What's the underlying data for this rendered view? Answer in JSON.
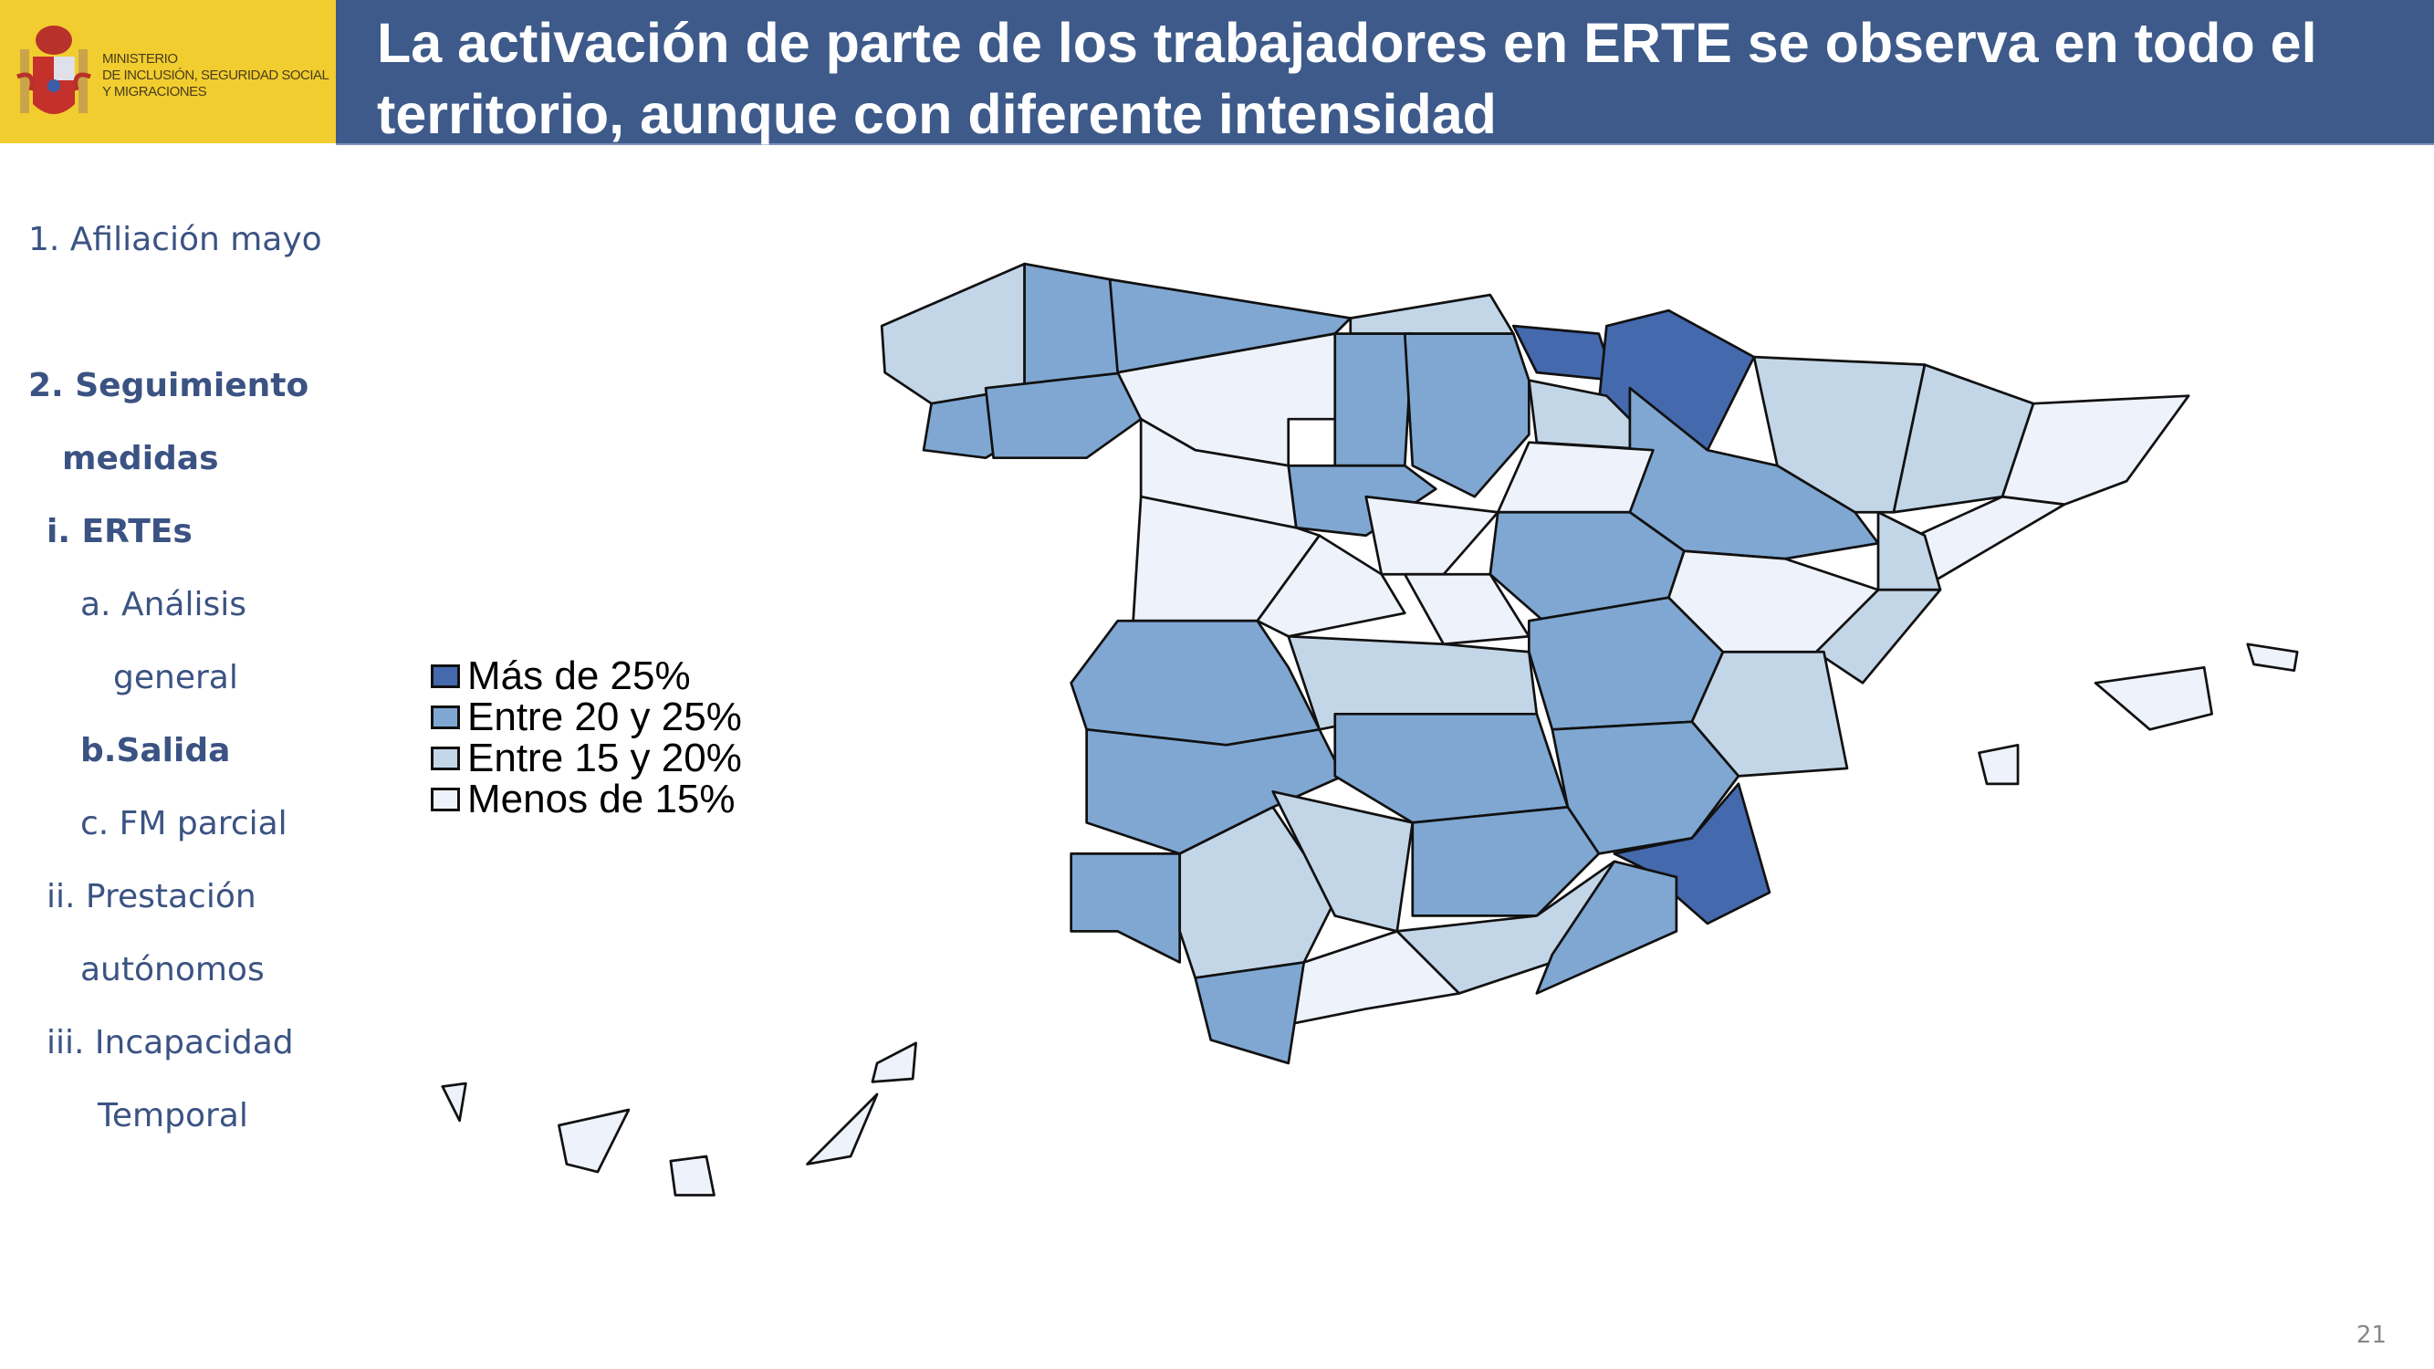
{
  "logo": {
    "lines": [
      "MINISTERIO",
      "DE INCLUSIÓN, SEGURIDAD SOCIAL",
      "Y MIGRACIONES"
    ]
  },
  "header": {
    "title": "La activación de parte de los trabajadores en ERTE se observa en todo el territorio, aunque con diferente intensidad"
  },
  "sidebar": {
    "items": [
      {
        "label": "1. Afiliación mayo",
        "bold": false
      },
      {
        "label": "2. Seguimiento",
        "bold": true
      },
      {
        "label": "medidas",
        "bold": true
      },
      {
        "label": "i.   ERTEs",
        "bold": true
      },
      {
        "label": "a. Análisis",
        "bold": false
      },
      {
        "label": "general",
        "bold": false
      },
      {
        "label": "b.Salida",
        "bold": true
      },
      {
        "label": "c. FM parcial",
        "bold": false
      },
      {
        "label": "ii.  Prestación",
        "bold": false
      },
      {
        "label": "autónomos",
        "bold": false
      },
      {
        "label": "iii.  Incapacidad",
        "bold": false
      },
      {
        "label": "Temporal",
        "bold": false
      }
    ]
  },
  "chart_data": {
    "type": "choropleth",
    "legend": [
      {
        "label": "Más de 25%",
        "color": "#4469ad"
      },
      {
        "label": "Entre 20 y 25%",
        "color": "#7fa7d2"
      },
      {
        "label": "Entre 15 y 20%",
        "color": "#c3d6e8"
      },
      {
        "label": "Menos de 15%",
        "color": "#eef2fb"
      }
    ],
    "region_classes": [
      2,
      1,
      1,
      1,
      1,
      2,
      0,
      0,
      3,
      1,
      1,
      2,
      2,
      2,
      3,
      3,
      1,
      3,
      1,
      2,
      3,
      3,
      3,
      1,
      3,
      3,
      2,
      1,
      2,
      1,
      2,
      1,
      1,
      1,
      3,
      0,
      1,
      2,
      2,
      1,
      2,
      1,
      3,
      1,
      3,
      3,
      3,
      3,
      3,
      3,
      3,
      3
    ]
  },
  "page_number": "21"
}
